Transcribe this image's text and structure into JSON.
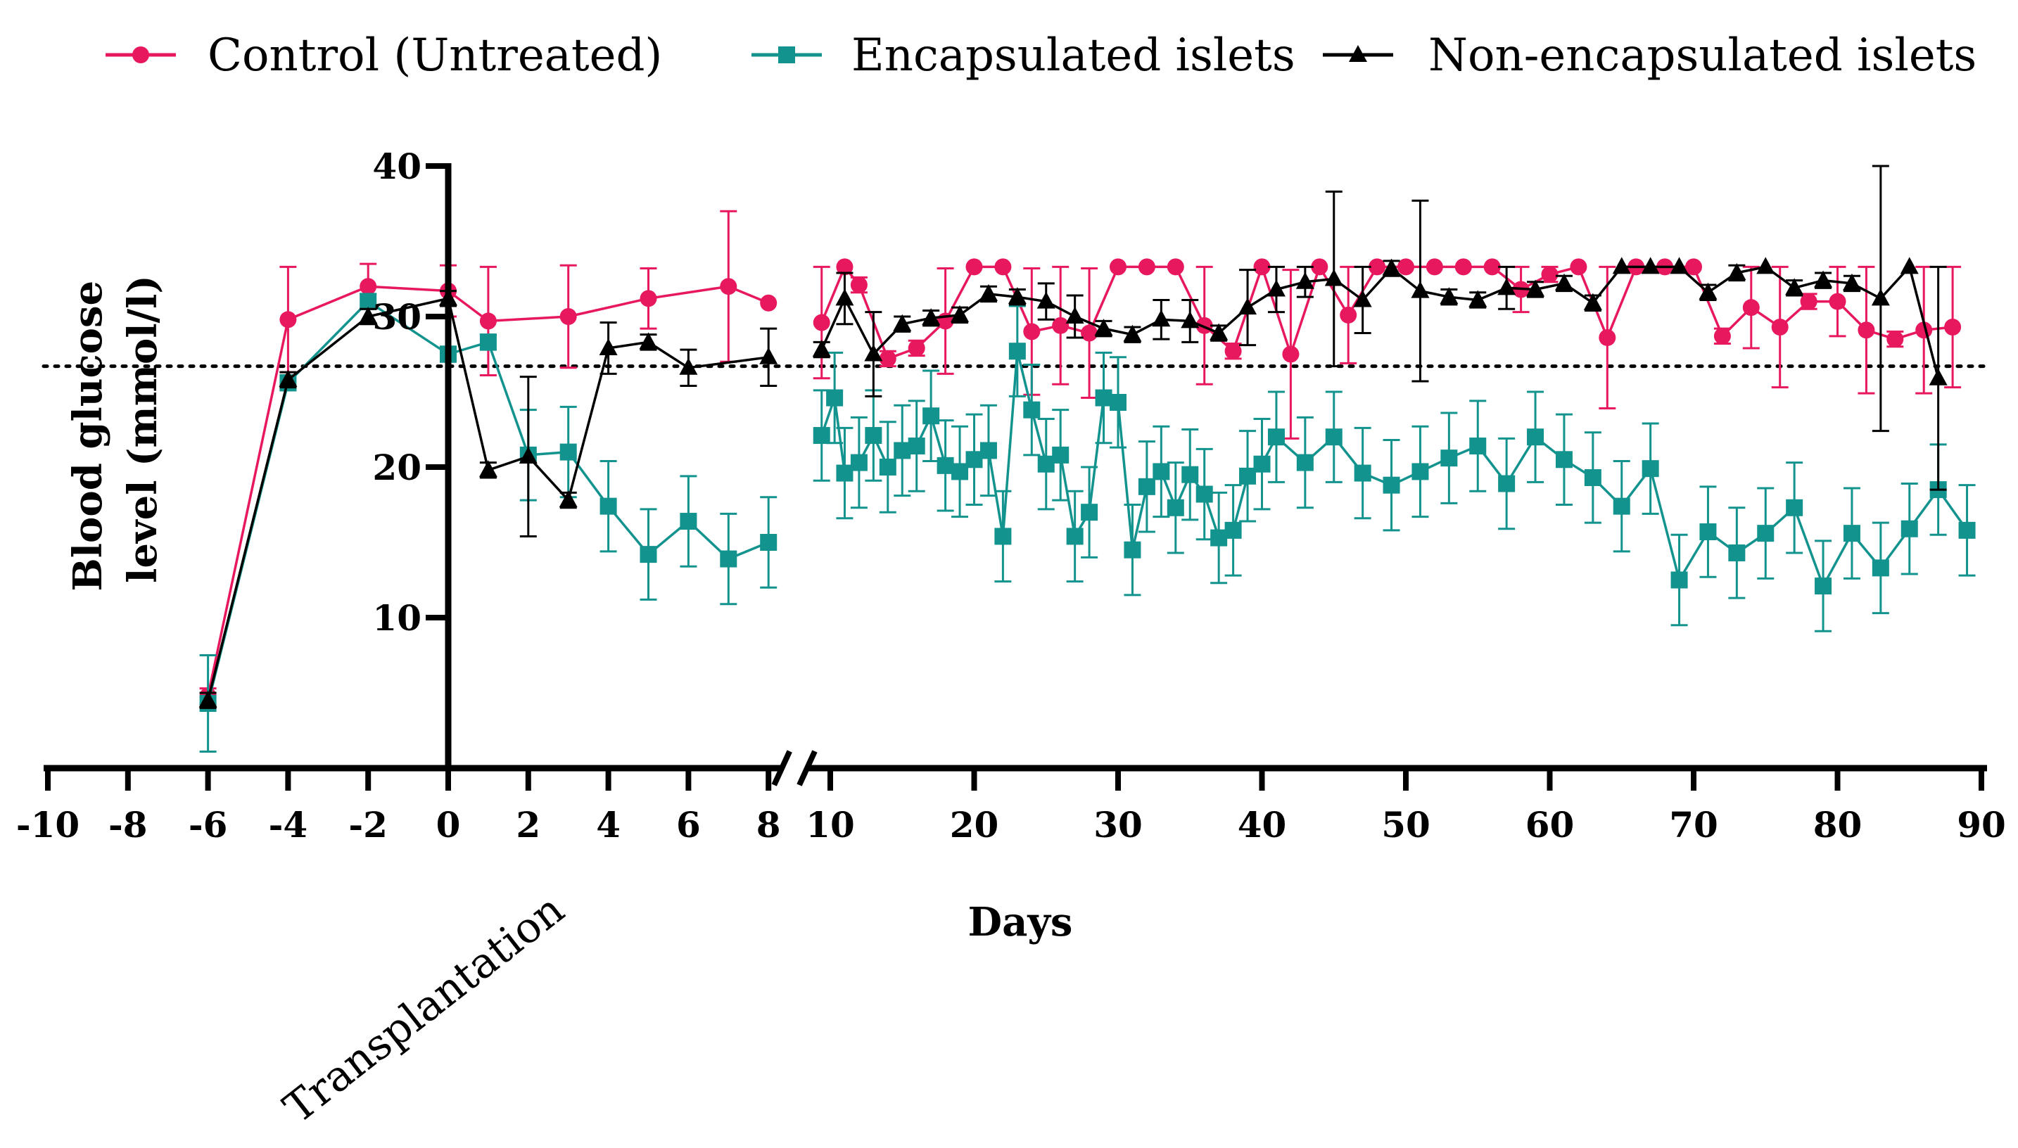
{
  "chart_data": {
    "type": "line",
    "title": "",
    "xlabel": "Days",
    "ylabel": "Blood glucose level (mmol/l)",
    "ylabel_lines": [
      "Blood glucose",
      "level (mmol/l)"
    ],
    "xlim": [
      -10,
      90
    ],
    "x_axis_break": [
      8,
      10
    ],
    "ylim": [
      0,
      40
    ],
    "x_ticks": [
      -10,
      -8,
      -6,
      -4,
      -2,
      0,
      2,
      4,
      6,
      8,
      10,
      20,
      30,
      40,
      50,
      60,
      70,
      80,
      90
    ],
    "x_tick_labels": [
      "-10",
      "-8",
      "-6",
      "-4",
      "-2",
      "0",
      "2",
      "4",
      "6",
      "8",
      "10",
      "20",
      "30",
      "40",
      "50",
      "60",
      "70",
      "80",
      "90"
    ],
    "y_ticks": [
      10,
      20,
      30,
      40
    ],
    "y_tick_labels": [
      "10",
      "20",
      "30",
      "40"
    ],
    "threshold_line": 26.7,
    "annotation": "Transplantation",
    "grid": false,
    "legend_position": "top",
    "series": [
      {
        "name": "Control (Untreated)",
        "color": "#e8185f",
        "marker": "circle",
        "points": [
          [
            -6,
            4.8,
            0.5
          ],
          [
            -4,
            29.8,
            3.5
          ],
          [
            -2,
            32.0,
            1.5
          ],
          [
            0,
            31.7,
            1.7
          ],
          [
            1,
            29.7,
            3.6
          ],
          [
            3,
            30.0,
            3.4
          ],
          [
            5,
            31.2,
            2.0
          ],
          [
            7,
            32.0,
            5.0
          ],
          [
            8,
            30.9,
            0
          ],
          [
            9.4,
            29.6,
            3.7
          ],
          [
            11,
            33.3,
            0.1
          ],
          [
            12,
            32.1,
            0.5
          ],
          [
            14,
            27.2,
            0.5
          ],
          [
            16,
            27.9,
            0.5
          ],
          [
            18,
            29.7,
            3.5
          ],
          [
            20,
            33.3,
            0.1
          ],
          [
            22,
            33.3,
            0.1
          ],
          [
            24,
            29.0,
            4.2
          ],
          [
            26,
            29.4,
            3.9
          ],
          [
            28,
            28.9,
            4.3
          ],
          [
            30,
            33.3,
            0.1
          ],
          [
            32,
            33.3,
            0.1
          ],
          [
            34,
            33.3,
            0.1
          ],
          [
            36,
            29.4,
            3.9
          ],
          [
            38,
            27.7,
            0.5
          ],
          [
            40,
            33.3,
            0.1
          ],
          [
            42,
            27.5,
            5.6
          ],
          [
            44,
            33.3,
            0.1
          ],
          [
            46,
            30.1,
            3.2
          ],
          [
            48,
            33.3,
            0.1
          ],
          [
            50,
            33.3,
            0.1
          ],
          [
            52,
            33.3,
            0.1
          ],
          [
            54,
            33.3,
            0.1
          ],
          [
            56,
            33.3,
            0.1
          ],
          [
            58,
            31.8,
            1.5
          ],
          [
            60,
            32.8,
            0.5
          ],
          [
            62,
            33.3,
            0.1
          ],
          [
            64,
            28.6,
            4.7
          ],
          [
            66,
            33.3,
            0.1
          ],
          [
            68,
            33.3,
            0.1
          ],
          [
            70,
            33.3,
            0.1
          ],
          [
            72,
            28.7,
            0.5
          ],
          [
            74,
            30.6,
            2.7
          ],
          [
            76,
            29.3,
            4.0
          ],
          [
            78,
            31.0,
            0.5
          ],
          [
            80,
            31.0,
            2.3
          ],
          [
            82,
            29.1,
            4.2
          ],
          [
            84,
            28.5,
            0.5
          ],
          [
            86,
            29.1,
            4.2
          ],
          [
            88,
            29.3,
            4.0
          ]
        ]
      },
      {
        "name": "Encapsulated islets",
        "color": "#13938e",
        "marker": "square",
        "points": [
          [
            -6,
            4.3,
            3.2
          ],
          [
            -4,
            25.6,
            0.5
          ],
          [
            -2,
            31.0,
            0.5
          ],
          [
            0,
            27.5,
            0.5
          ],
          [
            1,
            28.3,
            0.5
          ],
          [
            2,
            20.8,
            3.0
          ],
          [
            3,
            21.0,
            3.0
          ],
          [
            4,
            17.4,
            3.0
          ],
          [
            5,
            14.2,
            3.0
          ],
          [
            6,
            16.4,
            3.0
          ],
          [
            7,
            13.9,
            3.0
          ],
          [
            8,
            15.0,
            3.0
          ],
          [
            9.4,
            22.1,
            3.0
          ],
          [
            10.3,
            24.6,
            3.0
          ],
          [
            11,
            19.6,
            3.0
          ],
          [
            12,
            20.3,
            3.0
          ],
          [
            13,
            22.1,
            3.0
          ],
          [
            14,
            20.0,
            3.0
          ],
          [
            15,
            21.1,
            3.0
          ],
          [
            16,
            21.4,
            3.0
          ],
          [
            17,
            23.4,
            3.0
          ],
          [
            18,
            20.1,
            3.0
          ],
          [
            19,
            19.7,
            3.0
          ],
          [
            20,
            20.5,
            3.0
          ],
          [
            21,
            21.1,
            3.0
          ],
          [
            22,
            15.4,
            3.0
          ],
          [
            23,
            27.7,
            3.0
          ],
          [
            24,
            23.8,
            3.0
          ],
          [
            25,
            20.2,
            3.0
          ],
          [
            26,
            20.8,
            3.0
          ],
          [
            27,
            15.4,
            3.0
          ],
          [
            28,
            17.0,
            3.0
          ],
          [
            29,
            24.6,
            3.0
          ],
          [
            30,
            24.3,
            3.0
          ],
          [
            31,
            14.5,
            3.0
          ],
          [
            32,
            18.7,
            3.0
          ],
          [
            33,
            19.7,
            3.0
          ],
          [
            34,
            17.3,
            3.0
          ],
          [
            35,
            19.5,
            3.0
          ],
          [
            36,
            18.2,
            3.0
          ],
          [
            37,
            15.3,
            3.0
          ],
          [
            38,
            15.8,
            3.0
          ],
          [
            39,
            19.4,
            3.0
          ],
          [
            40,
            20.2,
            3.0
          ],
          [
            41,
            22.0,
            3.0
          ],
          [
            43,
            20.3,
            3.0
          ],
          [
            45,
            22.0,
            3.0
          ],
          [
            47,
            19.6,
            3.0
          ],
          [
            49,
            18.8,
            3.0
          ],
          [
            51,
            19.7,
            3.0
          ],
          [
            53,
            20.6,
            3.0
          ],
          [
            55,
            21.4,
            3.0
          ],
          [
            57,
            18.9,
            3.0
          ],
          [
            59,
            22.0,
            3.0
          ],
          [
            61,
            20.5,
            3.0
          ],
          [
            63,
            19.3,
            3.0
          ],
          [
            65,
            17.4,
            3.0
          ],
          [
            67,
            19.9,
            3.0
          ],
          [
            69,
            12.5,
            3.0
          ],
          [
            71,
            15.7,
            3.0
          ],
          [
            73,
            14.3,
            3.0
          ],
          [
            75,
            15.6,
            3.0
          ],
          [
            77,
            17.3,
            3.0
          ],
          [
            79,
            12.1,
            3.0
          ],
          [
            81,
            15.6,
            3.0
          ],
          [
            83,
            13.3,
            3.0
          ],
          [
            85,
            15.9,
            3.0
          ],
          [
            87,
            18.5,
            3.0
          ],
          [
            89,
            15.8,
            3.0
          ]
        ]
      },
      {
        "name": "Non-encapsulated islets",
        "color": "#000000",
        "marker": "triangle",
        "points": [
          [
            -6,
            4.5,
            0.5
          ],
          [
            -4,
            25.8,
            0.5
          ],
          [
            -2,
            30.0,
            0.5
          ],
          [
            0,
            31.2,
            0.5
          ],
          [
            1,
            19.8,
            0.5
          ],
          [
            2,
            20.7,
            5.3
          ],
          [
            3,
            17.8,
            0.5
          ],
          [
            4,
            27.9,
            1.7
          ],
          [
            5,
            28.3,
            0.5
          ],
          [
            6,
            26.6,
            1.2
          ],
          [
            8,
            27.3,
            1.9
          ],
          [
            9.4,
            27.8,
            0.5
          ],
          [
            11,
            31.2,
            1.7
          ],
          [
            13,
            27.5,
            2.8
          ],
          [
            15,
            29.5,
            0.5
          ],
          [
            17,
            29.9,
            0.5
          ],
          [
            19,
            30.1,
            0.5
          ],
          [
            21,
            31.5,
            0.5
          ],
          [
            23,
            31.3,
            0.5
          ],
          [
            25,
            31.0,
            1.2
          ],
          [
            27,
            30.0,
            1.4
          ],
          [
            29,
            29.2,
            0.5
          ],
          [
            31,
            28.8,
            0.5
          ],
          [
            33,
            29.8,
            1.3
          ],
          [
            35,
            29.7,
            1.4
          ],
          [
            37,
            28.9,
            0.5
          ],
          [
            39,
            30.6,
            2.5
          ],
          [
            41,
            31.8,
            1.5
          ],
          [
            43,
            32.3,
            1.0
          ],
          [
            45,
            32.5,
            5.8
          ],
          [
            47,
            31.1,
            2.2
          ],
          [
            49,
            33.2,
            0.5
          ],
          [
            51,
            31.7,
            6.0
          ],
          [
            53,
            31.3,
            0.5
          ],
          [
            55,
            31.1,
            0.5
          ],
          [
            57,
            31.9,
            1.4
          ],
          [
            59,
            31.8,
            0.5
          ],
          [
            61,
            32.2,
            0.5
          ],
          [
            63,
            30.9,
            0.5
          ],
          [
            65,
            33.3,
            0.1
          ],
          [
            67,
            33.3,
            0.1
          ],
          [
            69,
            33.3,
            0.1
          ],
          [
            71,
            31.6,
            0.5
          ],
          [
            73,
            32.9,
            0.5
          ],
          [
            75,
            33.3,
            0.1
          ],
          [
            77,
            31.9,
            0.5
          ],
          [
            79,
            32.4,
            0.5
          ],
          [
            81,
            32.2,
            0.5
          ],
          [
            83,
            31.2,
            8.8
          ],
          [
            85,
            33.3,
            0.1
          ],
          [
            87,
            25.9,
            7.4
          ]
        ]
      }
    ]
  }
}
